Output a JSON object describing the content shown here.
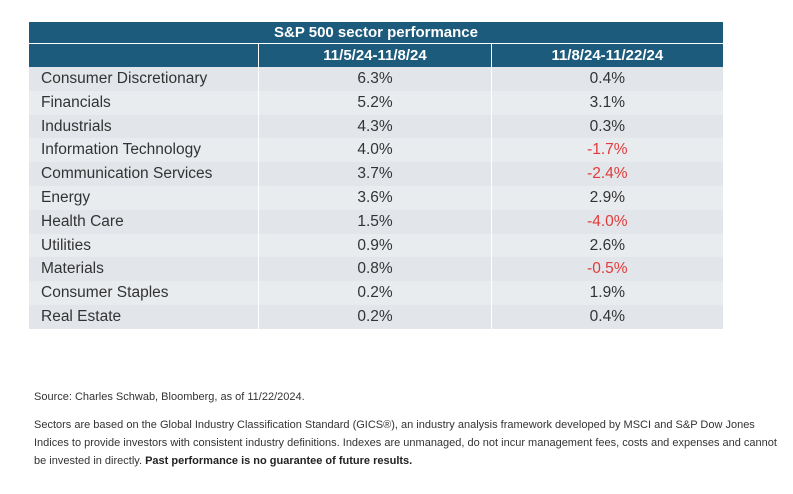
{
  "chart_data": {
    "type": "table",
    "title": "S&P 500 sector performance",
    "columns": [
      "",
      "11/5/24-11/8/24",
      "11/8/24-11/22/24"
    ],
    "rows": [
      {
        "sector": "Consumer Discretionary",
        "p1": "6.3%",
        "p2": "0.4%",
        "p1_value": 6.3,
        "p2_value": 0.4
      },
      {
        "sector": "Financials",
        "p1": "5.2%",
        "p2": "3.1%",
        "p1_value": 5.2,
        "p2_value": 3.1
      },
      {
        "sector": "Industrials",
        "p1": "4.3%",
        "p2": "0.3%",
        "p1_value": 4.3,
        "p2_value": 0.3
      },
      {
        "sector": "Information Technology",
        "p1": "4.0%",
        "p2": "-1.7%",
        "p1_value": 4.0,
        "p2_value": -1.7
      },
      {
        "sector": "Communication Services",
        "p1": "3.7%",
        "p2": "-2.4%",
        "p1_value": 3.7,
        "p2_value": -2.4
      },
      {
        "sector": "Energy",
        "p1": "3.6%",
        "p2": "2.9%",
        "p1_value": 3.6,
        "p2_value": 2.9
      },
      {
        "sector": "Health Care",
        "p1": "1.5%",
        "p2": "-4.0%",
        "p1_value": 1.5,
        "p2_value": -4.0
      },
      {
        "sector": "Utilities",
        "p1": "0.9%",
        "p2": "2.6%",
        "p1_value": 0.9,
        "p2_value": 2.6
      },
      {
        "sector": "Materials",
        "p1": "0.8%",
        "p2": "-0.5%",
        "p1_value": 0.8,
        "p2_value": -0.5
      },
      {
        "sector": "Consumer Staples",
        "p1": "0.2%",
        "p2": "1.9%",
        "p1_value": 0.2,
        "p2_value": 1.9
      },
      {
        "sector": "Real Estate",
        "p1": "0.2%",
        "p2": "0.4%",
        "p1_value": 0.2,
        "p2_value": 0.4
      }
    ]
  },
  "colors": {
    "header_bg": "#1d5b7c",
    "row_alt": "#e2e6ea",
    "row_plain": "#e9ecef",
    "negative": "#e03a3a"
  },
  "notes": {
    "source": "Source: Charles Schwab, Bloomberg, as of 11/22/2024.",
    "sectors_text": "Sectors are based on the Global Industry Classification Standard (GICS®), an industry analysis framework developed by MSCI and S&P Dow Jones Indices to provide investors with consistent industry definitions. Indexes are unmanaged, do not incur management fees, costs and expenses and cannot be invested in directly.",
    "disclaimer_bold": "Past performance is no guarantee of future results."
  }
}
